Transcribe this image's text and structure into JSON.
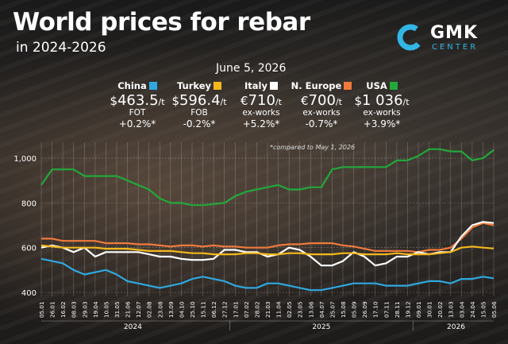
{
  "header": {
    "title": "World prices for rebar",
    "subtitle": "in 2024-2026",
    "date": "June 5, 2026"
  },
  "logo": {
    "main": "GMK",
    "sub": "CENTER",
    "accent": "#31b6e6"
  },
  "note": "*compared to May 1, 2026",
  "markets": [
    {
      "name": "China",
      "currency": "$",
      "price": "463.5",
      "unit": "/t",
      "basis": "FOT",
      "change": "+0.2%*",
      "color": "#2fa8e0"
    },
    {
      "name": "Turkey",
      "currency": "$",
      "price": "596.4",
      "unit": "/t",
      "basis": "FOB",
      "change": "-0.2%*",
      "color": "#f4b81c"
    },
    {
      "name": "Italy",
      "currency": "€",
      "price": "710",
      "unit": "/t",
      "basis": "ex-works",
      "change": "+5.2%*",
      "color": "#ffffff"
    },
    {
      "name": "N. Europe",
      "currency": "€",
      "price": "700",
      "unit": "/t",
      "basis": "ex-works",
      "change": "-0.7%*",
      "color": "#ef7a3c"
    },
    {
      "name": "USA",
      "currency": "$",
      "price": "1 036",
      "unit": "/t",
      "basis": "ex-works",
      "change": "+3.9%*",
      "color": "#22a83a"
    }
  ],
  "chart_data": {
    "type": "line",
    "ylim": [
      400,
      1050
    ],
    "yticks": [
      400,
      600,
      800,
      1000
    ],
    "grid": true,
    "x": [
      "05.01",
      "26.01",
      "16.02",
      "08.03",
      "29.03",
      "19.04",
      "10.05",
      "31.05",
      "21.06",
      "12.07",
      "02.08",
      "23.08",
      "13.09",
      "04.10",
      "25.10",
      "15.11",
      "06.12",
      "27.12",
      "17.01",
      "07.02",
      "28.02",
      "21.03",
      "11.04",
      "02.05",
      "23.05",
      "13.06",
      "04.07",
      "25.07",
      "15.08",
      "05.09",
      "26.09",
      "17.10",
      "07.11",
      "28.11",
      "19.12",
      "09.01",
      "30.01",
      "20.02",
      "13.03",
      "03.04",
      "24.04",
      "15.05",
      "05.06"
    ],
    "years": [
      {
        "label": "2024",
        "start": 0,
        "end": 17
      },
      {
        "label": "2025",
        "start": 18,
        "end": 34
      },
      {
        "label": "2026",
        "start": 35,
        "end": 42
      }
    ],
    "series": [
      {
        "name": "USA",
        "color": "#22a83a",
        "values": [
          880,
          950,
          950,
          950,
          920,
          920,
          920,
          920,
          900,
          880,
          860,
          820,
          800,
          800,
          790,
          790,
          795,
          800,
          830,
          850,
          860,
          870,
          880,
          860,
          860,
          870,
          870,
          950,
          960,
          960,
          960,
          960,
          960,
          990,
          990,
          1010,
          1040,
          1040,
          1030,
          1030,
          990,
          1000,
          1036
        ]
      },
      {
        "name": "N. Europe",
        "color": "#ef7a3c",
        "values": [
          640,
          640,
          630,
          630,
          630,
          630,
          620,
          620,
          620,
          615,
          615,
          610,
          605,
          610,
          610,
          605,
          610,
          605,
          605,
          600,
          600,
          600,
          610,
          615,
          615,
          620,
          620,
          620,
          610,
          605,
          595,
          585,
          585,
          585,
          585,
          580,
          590,
          590,
          600,
          640,
          690,
          710,
          700
        ]
      },
      {
        "name": "Italy",
        "color": "#ffffff",
        "values": [
          600,
          610,
          600,
          580,
          600,
          560,
          580,
          580,
          580,
          580,
          570,
          560,
          560,
          550,
          545,
          545,
          550,
          590,
          590,
          580,
          580,
          560,
          570,
          600,
          590,
          560,
          520,
          520,
          540,
          580,
          560,
          520,
          530,
          560,
          560,
          580,
          570,
          580,
          580,
          650,
          700,
          715,
          710
        ]
      },
      {
        "name": "Turkey",
        "color": "#f4b81c",
        "values": [
          610,
          605,
          600,
          600,
          600,
          600,
          595,
          595,
          595,
          590,
          585,
          585,
          585,
          580,
          575,
          575,
          570,
          570,
          570,
          575,
          575,
          570,
          570,
          575,
          575,
          570,
          570,
          570,
          575,
          575,
          570,
          570,
          570,
          575,
          570,
          570,
          570,
          575,
          580,
          600,
          605,
          600,
          596
        ]
      },
      {
        "name": "China",
        "color": "#2fa8e0",
        "values": [
          550,
          540,
          530,
          500,
          480,
          490,
          500,
          480,
          450,
          440,
          430,
          420,
          430,
          440,
          460,
          470,
          460,
          450,
          430,
          420,
          420,
          440,
          440,
          430,
          420,
          410,
          410,
          420,
          430,
          440,
          440,
          440,
          430,
          430,
          430,
          440,
          450,
          450,
          440,
          460,
          460,
          470,
          463
        ]
      }
    ]
  }
}
